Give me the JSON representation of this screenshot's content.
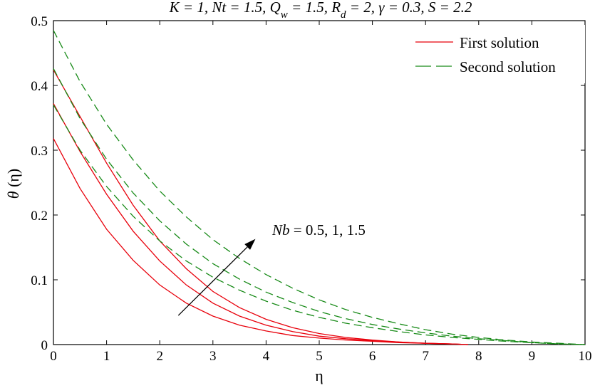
{
  "chart_data": {
    "type": "line",
    "title": "K = 1, Nt = 1.5, Q_w = 1.5, R_d = 2, γ = 0.3, S = 2.2",
    "xlabel": "η",
    "ylabel": "θ (η)",
    "xlim": [
      0,
      10
    ],
    "ylim": [
      0,
      0.5
    ],
    "xticks": [
      0,
      1,
      2,
      3,
      4,
      5,
      6,
      7,
      8,
      9,
      10
    ],
    "yticks": [
      0,
      0.1,
      0.2,
      0.3,
      0.4,
      0.5
    ],
    "grid": false,
    "legend_position": "top-right",
    "legend": [
      {
        "label": "First solution",
        "color": "#e8000b",
        "dash": "solid"
      },
      {
        "label": "Second solution",
        "color": "#178a17",
        "dash": "dashed"
      }
    ],
    "annotation": {
      "text": "Nb = 0.5, 1, 1.5",
      "arrow_from": [
        2.35,
        0.045
      ],
      "arrow_to": [
        3.8,
        0.163
      ]
    },
    "series": [
      {
        "group": "First solution",
        "color": "#e8000b",
        "dash": "solid",
        "x": [
          0,
          0.5,
          1,
          1.5,
          2,
          2.5,
          3,
          3.5,
          4,
          4.5,
          5,
          5.5,
          6,
          6.5,
          7,
          7.5,
          7.8
        ],
        "y": [
          0.318,
          0.241,
          0.178,
          0.13,
          0.092,
          0.064,
          0.044,
          0.03,
          0.021,
          0.014,
          0.01,
          0.007,
          0.005,
          0.003,
          0.002,
          0.001,
          0
        ]
      },
      {
        "group": "First solution",
        "color": "#e8000b",
        "dash": "solid",
        "x": [
          0,
          0.5,
          1,
          1.5,
          2,
          2.5,
          3,
          3.5,
          4,
          4.5,
          5,
          5.5,
          6,
          6.5,
          7,
          7.5,
          7.8
        ],
        "y": [
          0.372,
          0.298,
          0.232,
          0.175,
          0.129,
          0.092,
          0.064,
          0.044,
          0.03,
          0.02,
          0.013,
          0.009,
          0.006,
          0.004,
          0.002,
          0.001,
          0
        ]
      },
      {
        "group": "First solution",
        "color": "#e8000b",
        "dash": "solid",
        "x": [
          0,
          0.5,
          1,
          1.5,
          2,
          2.5,
          3,
          3.5,
          4,
          4.5,
          5,
          5.5,
          6,
          6.5,
          7,
          7.5,
          7.8
        ],
        "y": [
          0.424,
          0.352,
          0.28,
          0.215,
          0.16,
          0.117,
          0.082,
          0.057,
          0.039,
          0.026,
          0.017,
          0.011,
          0.007,
          0.004,
          0.002,
          0.001,
          0
        ]
      },
      {
        "group": "Second solution",
        "color": "#178a17",
        "dash": "dashed",
        "x": [
          0,
          0.5,
          1,
          1.5,
          2,
          2.5,
          3,
          3.5,
          4,
          4.5,
          5,
          5.5,
          6,
          6.5,
          7,
          7.5,
          8,
          8.5,
          9,
          9.5,
          10
        ],
        "y": [
          0.37,
          0.3,
          0.244,
          0.198,
          0.16,
          0.129,
          0.104,
          0.084,
          0.067,
          0.053,
          0.042,
          0.033,
          0.026,
          0.02,
          0.015,
          0.011,
          0.008,
          0.005,
          0.003,
          0.001,
          0
        ]
      },
      {
        "group": "Second solution",
        "color": "#178a17",
        "dash": "dashed",
        "x": [
          0,
          0.5,
          1,
          1.5,
          2,
          2.5,
          3,
          3.5,
          4,
          4.5,
          5,
          5.5,
          6,
          6.5,
          7,
          7.5,
          8,
          8.5,
          9,
          9.5,
          10
        ],
        "y": [
          0.426,
          0.349,
          0.286,
          0.234,
          0.191,
          0.155,
          0.125,
          0.101,
          0.081,
          0.065,
          0.051,
          0.04,
          0.031,
          0.024,
          0.018,
          0.013,
          0.009,
          0.006,
          0.003,
          0.001,
          0
        ]
      },
      {
        "group": "Second solution",
        "color": "#178a17",
        "dash": "dashed",
        "x": [
          0,
          0.5,
          1,
          1.5,
          2,
          2.5,
          3,
          3.5,
          4,
          4.5,
          5,
          5.5,
          6,
          6.5,
          7,
          7.5,
          8,
          8.5,
          9,
          9.5,
          10
        ],
        "y": [
          0.485,
          0.406,
          0.34,
          0.285,
          0.237,
          0.197,
          0.162,
          0.133,
          0.108,
          0.087,
          0.069,
          0.054,
          0.042,
          0.032,
          0.023,
          0.016,
          0.011,
          0.007,
          0.004,
          0.002,
          0
        ]
      }
    ]
  }
}
